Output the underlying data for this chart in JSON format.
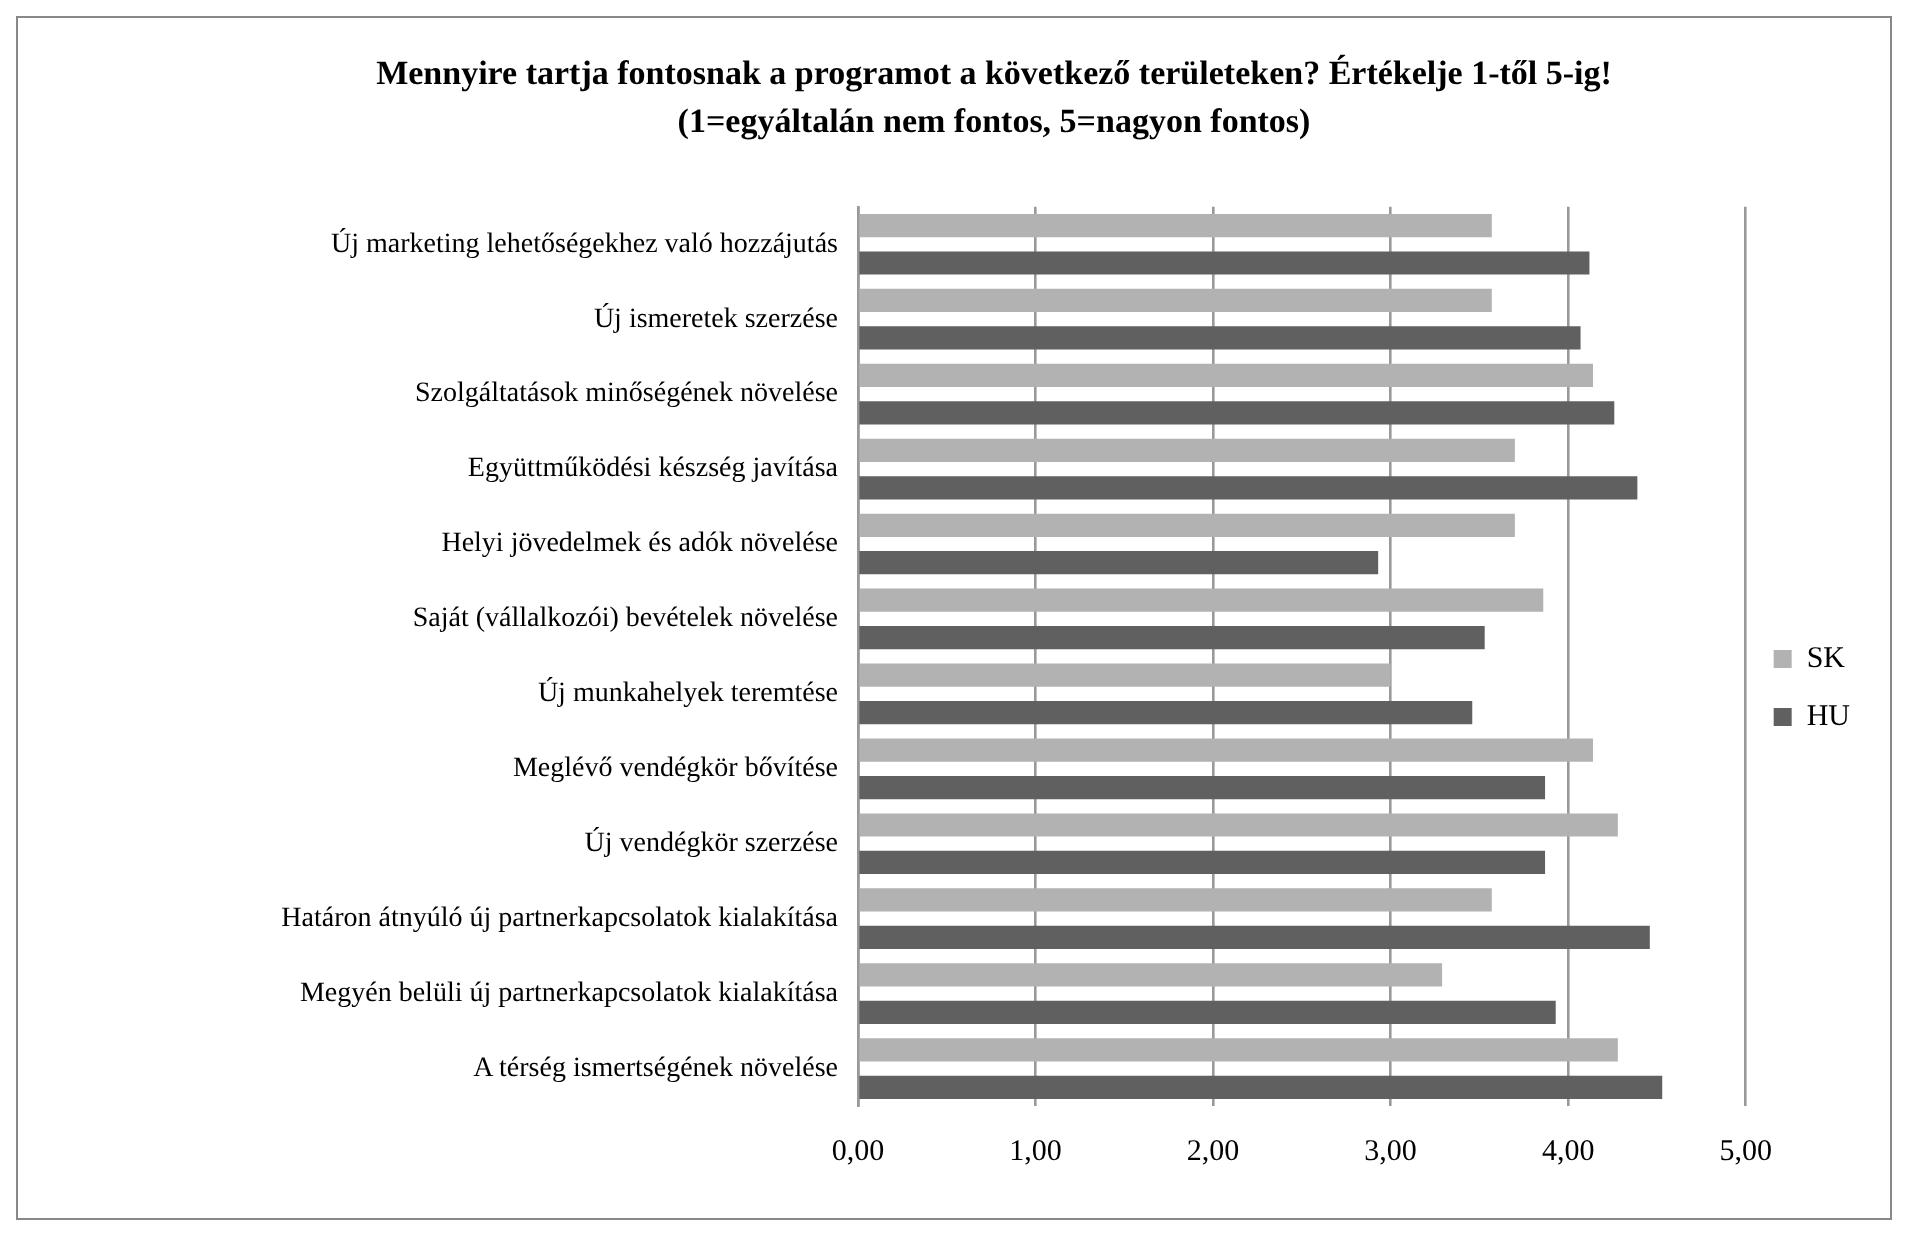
{
  "chart_data": {
    "type": "bar",
    "orientation": "horizontal",
    "title": "Mennyire tartja fontosnak a programot a következő területeken? Értékelje 1-től 5-ig! (1=egyáltalán nem fontos, 5=nagyon fontos)",
    "categories": [
      "Új marketing lehetőségekhez való hozzájutás",
      "Új ismeretek szerzése",
      "Szolgáltatások minőségének növelése",
      "Együttműködési készség javítása",
      "Helyi jövedelmek és adók növelése",
      "Saját (vállalkozói) bevételek növelése",
      "Új munkahelyek teremtése",
      "Meglévő vendégkör bővítése",
      "Új vendégkör szerzése",
      "Határon átnyúló új partnerkapcsolatok kialakítása",
      "Megyén belüli új partnerkapcsolatok kialakítása",
      "A térség ismertségének növelése"
    ],
    "series": [
      {
        "name": "SK",
        "color": "#b2b2b2",
        "values": [
          3.57,
          3.57,
          4.14,
          3.7,
          3.7,
          3.86,
          3.0,
          4.14,
          4.28,
          3.57,
          3.29,
          4.28
        ]
      },
      {
        "name": "HU",
        "color": "#606060",
        "values": [
          4.12,
          4.07,
          4.26,
          4.39,
          2.93,
          3.53,
          3.46,
          3.87,
          3.87,
          4.46,
          3.93,
          4.53
        ]
      }
    ],
    "xlim": [
      0,
      5
    ],
    "xticks": [
      {
        "value": 0,
        "label": "0,00"
      },
      {
        "value": 1,
        "label": "1,00"
      },
      {
        "value": 2,
        "label": "2,00"
      },
      {
        "value": 3,
        "label": "3,00"
      },
      {
        "value": 4,
        "label": "4,00"
      },
      {
        "value": 5,
        "label": "5,00"
      }
    ],
    "grid": "x",
    "legend": "right"
  }
}
